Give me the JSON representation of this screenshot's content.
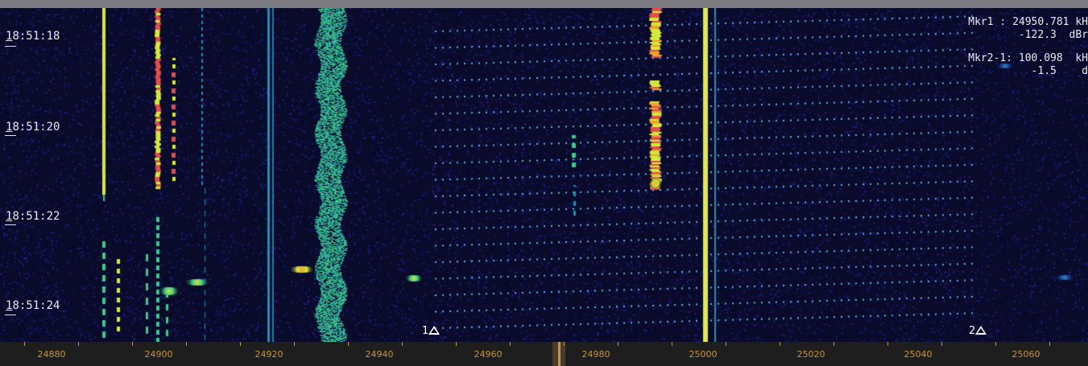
{
  "window": {
    "title": ""
  },
  "time_labels": [
    "18:51:18",
    "18:51:20",
    "18:51:22",
    "18:51:24"
  ],
  "marker_readout": {
    "mkr1_freq": "Mkr1 : 24950.781 kH",
    "mkr1_level": "-122.3  dBr",
    "mkr2_freq": "Mkr2-1: 100.098  kH",
    "mkr2_level": "-1.5    d"
  },
  "markers": [
    {
      "label": "1",
      "icon": "triangle-marker-icon"
    },
    {
      "label": "2",
      "icon": "triangle-marker-icon"
    }
  ],
  "frequency_axis": {
    "labels": [
      "24880",
      "24900",
      "24920",
      "24940",
      "24960",
      "24980",
      "25000",
      "25020",
      "25040",
      "25060"
    ],
    "color": "#c89436"
  },
  "colors": {
    "background": "#0a0a2a",
    "noise": "#1a1f6e",
    "signal_weak": "#2a8ab0",
    "signal_mid": "#3ec88a",
    "signal_strong": "#d4e83a",
    "signal_peak": "#e0504a"
  }
}
